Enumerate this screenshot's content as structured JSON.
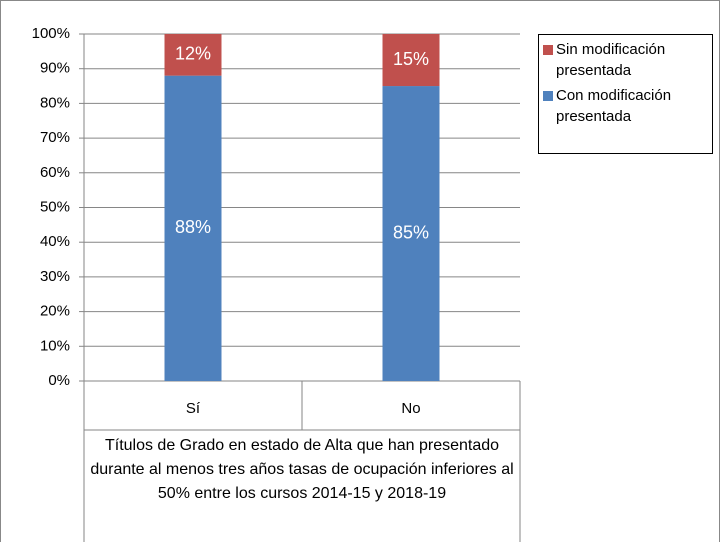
{
  "chart_data": {
    "type": "stacked_bar",
    "categories": [
      "Sí",
      "No"
    ],
    "x_group_label": "Títulos de Grado en estado de Alta que han presentado durante al menos tres años tasas de ocupación inferiores al 50% entre los cursos 2014-15 y 2018-19",
    "series": [
      {
        "name": "Con modificación presentada",
        "color": "#4f81bd",
        "values": [
          88,
          85
        ],
        "value_labels": [
          "88%",
          "85%"
        ]
      },
      {
        "name": "Sin modificación presentada",
        "color": "#c0504d",
        "values": [
          12,
          15
        ],
        "value_labels": [
          "12%",
          "15%"
        ]
      }
    ],
    "ylim": [
      0,
      100
    ],
    "yticks": [
      {
        "value": 0,
        "label": "0%"
      },
      {
        "value": 10,
        "label": "10%"
      },
      {
        "value": 20,
        "label": "20%"
      },
      {
        "value": 30,
        "label": "30%"
      },
      {
        "value": 40,
        "label": "40%"
      },
      {
        "value": 50,
        "label": "50%"
      },
      {
        "value": 60,
        "label": "60%"
      },
      {
        "value": 70,
        "label": "70%"
      },
      {
        "value": 80,
        "label": "80%"
      },
      {
        "value": 90,
        "label": "90%"
      },
      {
        "value": 100,
        "label": "100%"
      }
    ],
    "grid": true,
    "legend": "right"
  }
}
